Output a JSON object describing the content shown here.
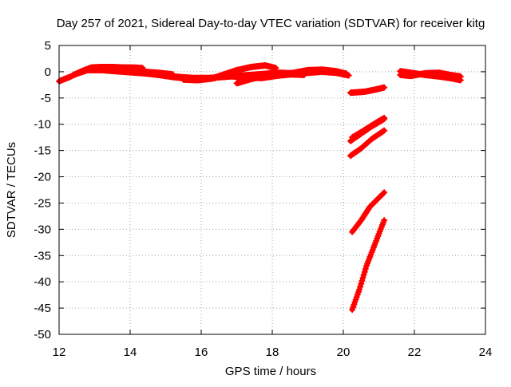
{
  "chart_data": {
    "type": "scatter",
    "title": "Day 257 of 2021, Sidereal Day-to-day VTEC variation (SDTVAR) for receiver kitg",
    "xlabel": "GPS time / hours",
    "ylabel": "SDTVAR / TECUs",
    "xlim": [
      12,
      24
    ],
    "ylim": [
      -50,
      5
    ],
    "xticks": [
      12,
      14,
      16,
      18,
      20,
      22,
      24
    ],
    "yticks": [
      5,
      0,
      -5,
      -10,
      -15,
      -20,
      -25,
      -30,
      -35,
      -40,
      -45,
      -50
    ],
    "grid": true,
    "legend": "none",
    "marker": "plus",
    "color": "#ff0000",
    "series": [
      {
        "segments": [
          [
            [
              12.0,
              -1.8
            ],
            [
              12.3,
              -1.0
            ],
            [
              12.6,
              0.0
            ],
            [
              12.9,
              0.8
            ],
            [
              13.2,
              0.9
            ],
            [
              13.5,
              0.9
            ],
            [
              13.8,
              0.8
            ],
            [
              14.1,
              0.8
            ],
            [
              14.35,
              0.7
            ]
          ],
          [
            [
              12.4,
              -0.6
            ],
            [
              12.8,
              0.3
            ],
            [
              13.2,
              0.3
            ],
            [
              13.6,
              0.2
            ],
            [
              14.0,
              0.1
            ],
            [
              14.4,
              0.0
            ],
            [
              14.8,
              -0.2
            ],
            [
              15.2,
              -0.5
            ]
          ],
          [
            [
              13.0,
              0.5
            ],
            [
              13.4,
              0.2
            ],
            [
              13.8,
              0.0
            ],
            [
              14.2,
              -0.2
            ],
            [
              14.6,
              -0.4
            ],
            [
              15.0,
              -0.8
            ],
            [
              15.4,
              -1.0
            ],
            [
              15.8,
              -1.2
            ],
            [
              16.2,
              -1.2
            ],
            [
              16.6,
              -1.0
            ],
            [
              17.0,
              -0.8
            ],
            [
              17.4,
              -0.6
            ],
            [
              17.8,
              -0.4
            ],
            [
              18.2,
              -0.2
            ],
            [
              18.6,
              -0.3
            ],
            [
              19.0,
              -0.2
            ],
            [
              19.4,
              0.0
            ],
            [
              19.8,
              -0.2
            ],
            [
              20.15,
              -0.7
            ]
          ],
          [
            [
              14.4,
              -0.3
            ],
            [
              14.8,
              -0.6
            ],
            [
              15.2,
              -1.0
            ],
            [
              15.6,
              -1.3
            ],
            [
              16.0,
              -1.4
            ],
            [
              16.4,
              -1.2
            ]
          ],
          [
            [
              15.5,
              -1.5
            ],
            [
              15.9,
              -1.6
            ],
            [
              16.3,
              -1.3
            ],
            [
              16.6,
              -0.6
            ],
            [
              17.0,
              0.3
            ],
            [
              17.4,
              0.9
            ],
            [
              17.8,
              1.2
            ],
            [
              18.1,
              0.7
            ]
          ],
          [
            [
              17.0,
              -2.2
            ],
            [
              17.4,
              -1.4
            ],
            [
              17.8,
              -0.8
            ],
            [
              18.2,
              -0.6
            ],
            [
              18.6,
              -0.2
            ],
            [
              19.0,
              0.3
            ],
            [
              19.4,
              0.4
            ],
            [
              19.8,
              0.1
            ],
            [
              20.1,
              -0.4
            ]
          ],
          [
            [
              16.9,
              -0.9
            ],
            [
              17.3,
              -1.1
            ],
            [
              17.7,
              -1.2
            ],
            [
              18.1,
              -0.8
            ],
            [
              18.5,
              -0.5
            ],
            [
              18.9,
              -0.6
            ]
          ],
          [
            [
              20.2,
              -4.0
            ],
            [
              20.6,
              -3.8
            ],
            [
              20.9,
              -3.4
            ],
            [
              21.15,
              -3.0
            ]
          ],
          [
            [
              20.2,
              -13.2
            ],
            [
              20.5,
              -11.8
            ],
            [
              20.8,
              -10.4
            ],
            [
              21.15,
              -9.0
            ]
          ],
          [
            [
              20.25,
              -12.5
            ],
            [
              20.55,
              -11.3
            ],
            [
              20.85,
              -10.0
            ],
            [
              21.15,
              -8.8
            ]
          ],
          [
            [
              20.2,
              -16.0
            ],
            [
              20.5,
              -14.6
            ],
            [
              20.8,
              -12.8
            ],
            [
              21.15,
              -11.2
            ]
          ],
          [
            [
              20.25,
              -30.5
            ],
            [
              20.5,
              -28.3
            ],
            [
              20.75,
              -25.7
            ],
            [
              21.0,
              -24.0
            ],
            [
              21.15,
              -23.0
            ]
          ],
          [
            [
              20.25,
              -45.3
            ],
            [
              20.45,
              -41.5
            ],
            [
              20.65,
              -37.0
            ],
            [
              20.85,
              -33.5
            ],
            [
              21.05,
              -30.0
            ],
            [
              21.15,
              -28.3
            ]
          ],
          [
            [
              21.6,
              0.1
            ],
            [
              21.9,
              -0.2
            ],
            [
              22.3,
              -0.6
            ],
            [
              22.7,
              -0.9
            ],
            [
              23.0,
              -1.2
            ],
            [
              23.3,
              -1.6
            ]
          ],
          [
            [
              21.6,
              -0.6
            ],
            [
              21.9,
              -0.8
            ],
            [
              22.3,
              -0.3
            ],
            [
              22.7,
              -0.2
            ],
            [
              23.0,
              -0.6
            ],
            [
              23.3,
              -0.9
            ]
          ]
        ]
      }
    ]
  }
}
